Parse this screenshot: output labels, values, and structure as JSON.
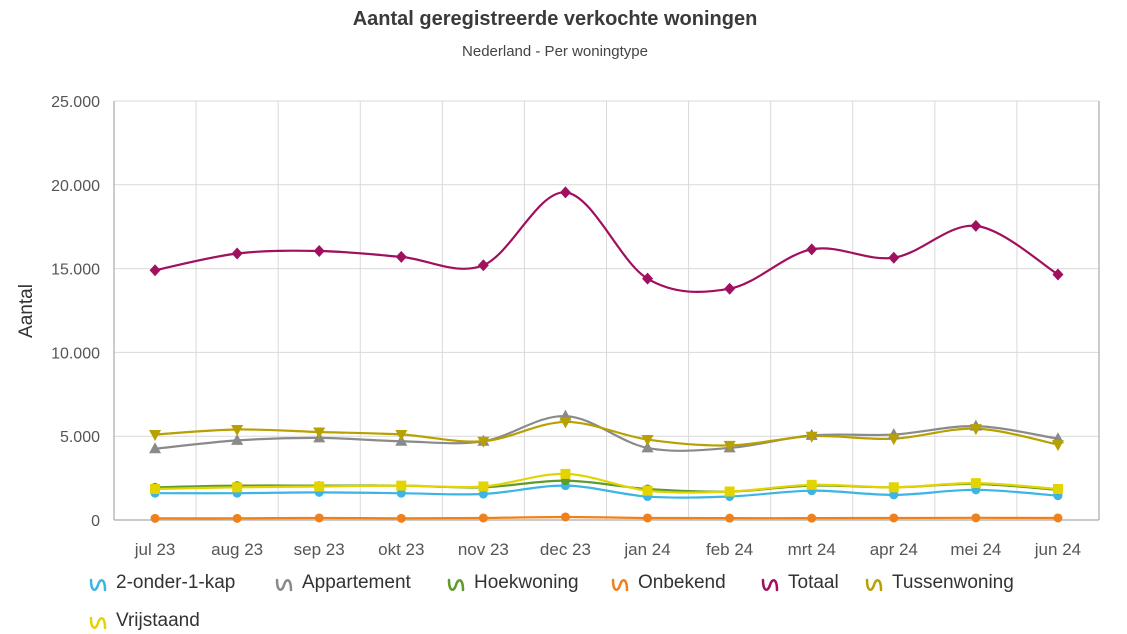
{
  "title": "Aantal geregistreerde verkochte woningen",
  "subtitle": "Nederland - Per woningtype",
  "chart_data": {
    "type": "line",
    "title": "Aantal geregistreerde verkochte woningen",
    "subtitle": "Nederland - Per woningtype",
    "xlabel": "",
    "ylabel": "Aantal",
    "categories": [
      "jul 23",
      "aug 23",
      "sep 23",
      "okt 23",
      "nov 23",
      "dec 23",
      "jan 24",
      "feb 24",
      "mrt 24",
      "apr 24",
      "mei 24",
      "jun 24"
    ],
    "y_ticks": [
      "0",
      "5.000",
      "10.000",
      "15.000",
      "20.000",
      "25.000"
    ],
    "ylim": [
      0,
      25000
    ],
    "grid": true,
    "legend_position": "bottom",
    "series": [
      {
        "name": "2-onder-1-kap",
        "color": "#3cb4e5",
        "marker": "circle",
        "values": [
          1600,
          1600,
          1650,
          1600,
          1550,
          2050,
          1400,
          1400,
          1750,
          1500,
          1800,
          1450
        ]
      },
      {
        "name": "Appartement",
        "color": "#8a8a8a",
        "marker": "triangle",
        "values": [
          4250,
          4750,
          4900,
          4700,
          4700,
          6200,
          4300,
          4300,
          5050,
          5100,
          5600,
          4850
        ]
      },
      {
        "name": "Hoekwoning",
        "color": "#5d9b2b",
        "marker": "circle",
        "values": [
          1950,
          2050,
          2050,
          2050,
          1950,
          2350,
          1850,
          1700,
          2050,
          1950,
          2150,
          1800
        ]
      },
      {
        "name": "Onbekend",
        "color": "#f0801a",
        "marker": "circle",
        "values": [
          100,
          100,
          120,
          100,
          120,
          180,
          120,
          110,
          110,
          120,
          130,
          120
        ]
      },
      {
        "name": "Totaal",
        "color": "#a0105e",
        "marker": "diamond",
        "values": [
          14900,
          15900,
          16050,
          15700,
          15200,
          19550,
          14400,
          13800,
          16150,
          15650,
          17550,
          14650
        ]
      },
      {
        "name": "Tussenwoning",
        "color": "#b8a000",
        "marker": "triangle-down",
        "values": [
          5100,
          5400,
          5250,
          5100,
          4700,
          5850,
          4800,
          4450,
          5000,
          4850,
          5450,
          4500
        ]
      },
      {
        "name": "Vrijstaand",
        "color": "#e3d400",
        "marker": "square",
        "values": [
          1850,
          1950,
          2000,
          2050,
          2000,
          2750,
          1750,
          1700,
          2100,
          1950,
          2200,
          1850
        ]
      }
    ]
  }
}
